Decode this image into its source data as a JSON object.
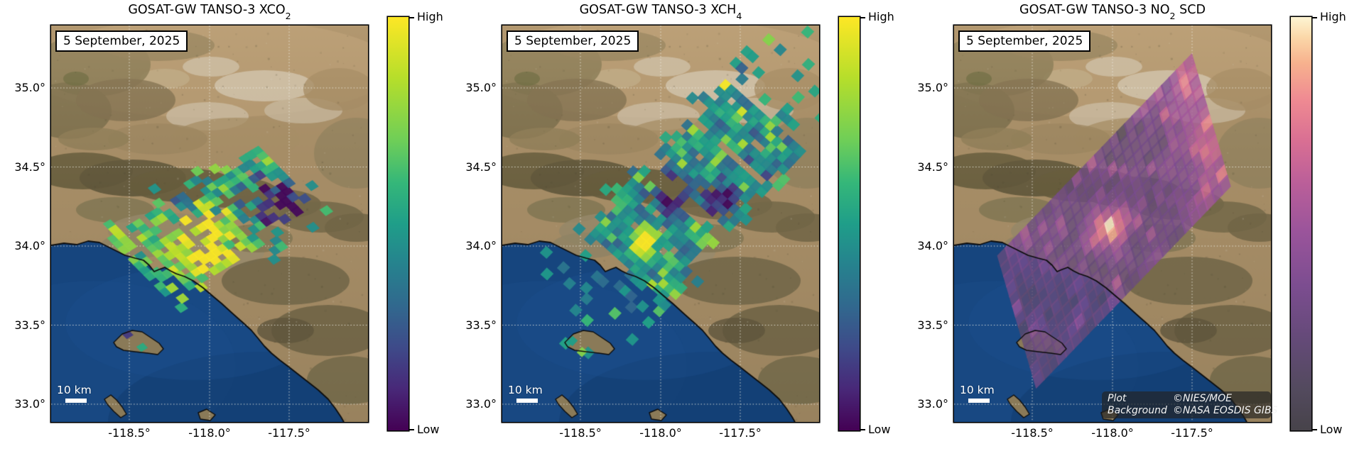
{
  "axes": {
    "lat_tick_labels": [
      "35.0°",
      "34.5°",
      "34.0°",
      "33.5°",
      "33.0°"
    ],
    "lon_tick_labels": [
      "-118.5°",
      "-118.0°",
      "-117.5°"
    ]
  },
  "panels": [
    {
      "title": {
        "text": "GOSAT-GW TANSO-3 XCO",
        "sub": "2",
        "suffix": ""
      },
      "date_label": "5 September, 2025",
      "scale_bar_label": "10 km",
      "colorbar": {
        "high_label": "High",
        "low_label": "Low",
        "colormap": "viridis"
      }
    },
    {
      "title": {
        "text": "GOSAT-GW TANSO-3 XCH",
        "sub": "4",
        "suffix": ""
      },
      "date_label": "5 September, 2025",
      "scale_bar_label": "10 km",
      "colorbar": {
        "high_label": "High",
        "low_label": "Low",
        "colormap": "viridis"
      }
    },
    {
      "title": {
        "text": "GOSAT-GW TANSO-3 NO",
        "sub": "2",
        "suffix": " SCD"
      },
      "date_label": "5 September, 2025",
      "scale_bar_label": "10 km",
      "colorbar": {
        "high_label": "High",
        "low_label": "Low",
        "colormap": "no2_magma"
      },
      "attribution": {
        "rows": [
          {
            "key": "Plot",
            "val": "©NIES/MOE"
          },
          {
            "key": "Background",
            "val": "©NASA EOSDIS GIBS"
          }
        ]
      }
    }
  ],
  "colors": {
    "ocean": "#16457E",
    "land": "#A78E68",
    "grid": "rgba(240,238,228,0.85)"
  },
  "colormaps": {
    "viridis": [
      [
        0,
        "#440154"
      ],
      [
        0.1,
        "#482878"
      ],
      [
        0.2,
        "#3E4A89"
      ],
      [
        0.3,
        "#31688E"
      ],
      [
        0.4,
        "#26828E"
      ],
      [
        0.5,
        "#1F9E89"
      ],
      [
        0.6,
        "#35B779"
      ],
      [
        0.7,
        "#6ECE58"
      ],
      [
        0.85,
        "#B5DE2B"
      ],
      [
        1,
        "#FDE725"
      ]
    ],
    "no2_magma": [
      [
        0,
        "#47434A"
      ],
      [
        0.1,
        "#534A5E"
      ],
      [
        0.22,
        "#644A78"
      ],
      [
        0.35,
        "#7C4D90"
      ],
      [
        0.48,
        "#9A549B"
      ],
      [
        0.6,
        "#BB5F99"
      ],
      [
        0.7,
        "#D96F93"
      ],
      [
        0.8,
        "#EF8A92"
      ],
      [
        0.89,
        "#F7B28E"
      ],
      [
        0.95,
        "#FBD7A8"
      ],
      [
        1,
        "#FDF5D3"
      ]
    ]
  },
  "chart_data": [
    {
      "type": "heatmap",
      "title": "GOSAT-GW TANSO-3 XCO2",
      "date": "5 September, 2025",
      "colorbar": {
        "high": "High",
        "low": "Low",
        "colormap": "viridis"
      },
      "map_extent": {
        "lon": [
          -119.0,
          -117.0
        ],
        "lat": [
          32.9,
          35.4
        ]
      },
      "lon_ticks": [
        -118.5,
        -118.0,
        -117.5
      ],
      "lat_ticks": [
        35.0,
        34.5,
        34.0,
        33.5,
        33.0
      ],
      "scale_bar": "10 km",
      "swath": {
        "seed": 11,
        "cells": [
          24,
          12
        ],
        "coverage": 0.66,
        "alpha": 0.95,
        "corner_D_lonlat": [
          -118.64,
          34.05
        ],
        "corner_A_lonlat": [
          -117.7,
          34.63
        ],
        "corner_C_lonlat": [
          -118.25,
          33.65
        ],
        "base": 0.6,
        "noise": 0.34,
        "wave": {
          "amp": 0.16,
          "fi": 1.9,
          "fj": 1.1
        },
        "edge_fade": 0.55,
        "col_gap_p": 0.1,
        "ext": {
          "u": 0.1,
          "v": 0.22,
          "p": 0.18
        },
        "spice": {
          "p_hi": 0.05,
          "hi": 0.25,
          "p_lo": 0.05,
          "lo": 0.25
        },
        "spots": [
          {
            "lon": -118.03,
            "lat": 34.03,
            "sigma": 40,
            "amp": 0.45
          },
          {
            "lon": -117.64,
            "lat": 34.3,
            "sigma": 30,
            "amp": -0.55
          },
          {
            "lon": -118.14,
            "lat": 34.31,
            "sigma": 20,
            "amp": -0.5
          },
          {
            "lon": -117.45,
            "lat": 34.18,
            "sigma": 25,
            "amp": -0.35
          }
        ],
        "extra_cells": [
          {
            "lon": -118.51,
            "lat": 33.44,
            "value": 0.15
          },
          {
            "lon": -118.42,
            "lat": 33.36,
            "value": 0.55
          }
        ]
      }
    },
    {
      "type": "heatmap",
      "title": "GOSAT-GW TANSO-3 XCH4",
      "date": "5 September, 2025",
      "colorbar": {
        "high": "High",
        "low": "Low",
        "colormap": "viridis"
      },
      "map_extent": {
        "lon": [
          -119.0,
          -117.0
        ],
        "lat": [
          32.9,
          35.4
        ]
      },
      "lon_ticks": [
        -118.5,
        -118.0,
        -117.5
      ],
      "lat_ticks": [
        35.0,
        34.5,
        34.0,
        33.5,
        33.0
      ],
      "scale_bar": "10 km",
      "swath": {
        "seed": 22,
        "cells": [
          26,
          14
        ],
        "coverage": 0.92,
        "alpha": 0.95,
        "corner_D_lonlat": [
          -118.48,
          34.11
        ],
        "corner_A_lonlat": [
          -117.6,
          35.05
        ],
        "corner_C_lonlat": [
          -117.98,
          33.66
        ],
        "base": 0.47,
        "noise": 0.22,
        "wave": {
          "amp": 0.12,
          "fi": 1.3,
          "fj": 0.9
        },
        "edge_fade": 0.8,
        "col_gap_p": 0.05,
        "ext": {
          "u": 0.5,
          "v": 0.12,
          "p": 0.3
        },
        "spice": {
          "p_hi": 0.06,
          "hi": 0.3,
          "p_lo": 0.04,
          "lo": 0.2
        },
        "spots": [
          {
            "lon": -118.1,
            "lat": 34.02,
            "sigma": 12,
            "amp": 0.8
          },
          {
            "lon": -117.66,
            "lat": 34.05,
            "sigma": 9,
            "amp": 0.5
          },
          {
            "lon": -118.29,
            "lat": 34.26,
            "sigma": 5,
            "amp": 0.6
          },
          {
            "lon": -117.92,
            "lat": 34.34,
            "sigma": 20,
            "amp": -0.52
          },
          {
            "lon": -117.62,
            "lat": 34.27,
            "sigma": 16,
            "amp": -0.5
          },
          {
            "lon": -118.05,
            "lat": 34.28,
            "sigma": 10,
            "amp": -0.35
          }
        ],
        "extra_cells": [
          {
            "lon": -118.55,
            "lat": 33.4,
            "value": 0.5
          },
          {
            "lon": -118.49,
            "lat": 33.33,
            "value": 0.75
          }
        ]
      }
    },
    {
      "type": "heatmap",
      "title": "GOSAT-GW TANSO-3 NO2 SCD",
      "date": "5 September, 2025",
      "colorbar": {
        "high": "High",
        "low": "Low",
        "colormap": "no2_magma"
      },
      "map_extent": {
        "lon": [
          -119.0,
          -117.0
        ],
        "lat": [
          32.9,
          35.4
        ]
      },
      "lon_ticks": [
        -118.5,
        -118.0,
        -117.5
      ],
      "lat_ticks": [
        35.0,
        34.5,
        34.0,
        33.5,
        33.0
      ],
      "scale_bar": "10 km",
      "attribution": [
        [
          "Plot",
          "©NIES/MOE"
        ],
        [
          "Background",
          "©NASA EOSDIS GIBS"
        ]
      ],
      "swath": {
        "seed": 33,
        "cells": [
          26,
          13
        ],
        "coverage": 1.0,
        "alpha": 0.78,
        "corner_D_lonlat": [
          -118.72,
          33.94
        ],
        "corner_A_lonlat": [
          -117.51,
          35.21
        ],
        "corner_C_lonlat": [
          -118.48,
          33.11
        ],
        "base": 0.3,
        "noise": 0.13,
        "wave": {
          "amp": 0.05,
          "fi": 1.1,
          "fj": 0.8
        },
        "edge_fade": 1.0,
        "col_gap_p": 0,
        "ext": {
          "u": 0.02,
          "v": 0.02,
          "p": 0
        },
        "edge_warm": {
          "start": 0.72,
          "amp": 0.3
        },
        "spice": {
          "p_hi": 0.08,
          "hi": 0.18,
          "p_lo": 0.06,
          "lo": 0.1
        },
        "spots": [
          {
            "lon": -118.02,
            "lat": 34.12,
            "sigma": 15,
            "amp": 0.66
          },
          {
            "lon": -118.12,
            "lat": 34.02,
            "sigma": 10,
            "amp": 0.28
          },
          {
            "lon": -117.93,
            "lat": 34.22,
            "sigma": 12,
            "amp": 0.22
          },
          {
            "lon": -118.55,
            "lat": 33.45,
            "sigma": 45,
            "amp": -0.08
          }
        ],
        "extra_cells": []
      }
    }
  ]
}
